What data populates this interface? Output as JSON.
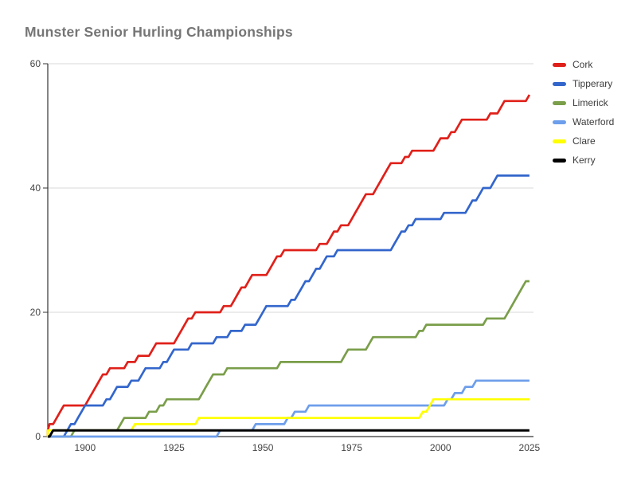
{
  "chart_data": {
    "type": "line",
    "title": "Munster Senior Hurling Championships",
    "value_type": "cumulative_championship_titles_by_year",
    "x_axis": {
      "ticks": [
        1900,
        1925,
        1950,
        1975,
        2000,
        2025
      ],
      "domain_start": 1889.5,
      "domain_end": 2030,
      "first_year": 1887,
      "last_year": 2025
    },
    "y_axis": {
      "ticks": [
        0,
        20,
        40,
        60
      ],
      "lim": [
        0,
        60
      ]
    },
    "grid": true,
    "legend_position": "right",
    "series": [
      {
        "name": "Cork",
        "color": "#e0201a",
        "total": 55,
        "win_years": [
          1888,
          1890,
          1892,
          1893,
          1894,
          1901,
          1902,
          1903,
          1904,
          1905,
          1907,
          1912,
          1915,
          1919,
          1920,
          1926,
          1927,
          1928,
          1929,
          1931,
          1939,
          1942,
          1943,
          1944,
          1946,
          1947,
          1952,
          1953,
          1954,
          1956,
          1966,
          1969,
          1970,
          1972,
          1975,
          1976,
          1977,
          1978,
          1979,
          1982,
          1983,
          1984,
          1985,
          1986,
          1990,
          1992,
          1999,
          2000,
          2003,
          2005,
          2006,
          2014,
          2017,
          2018,
          2025
        ]
      },
      {
        "name": "Tipperary",
        "color": "#3366cc",
        "total": 42,
        "win_years": [
          1895,
          1896,
          1898,
          1899,
          1900,
          1906,
          1908,
          1909,
          1913,
          1916,
          1917,
          1922,
          1924,
          1925,
          1930,
          1937,
          1941,
          1945,
          1949,
          1950,
          1951,
          1958,
          1960,
          1961,
          1962,
          1964,
          1965,
          1967,
          1968,
          1971,
          1987,
          1988,
          1989,
          1991,
          1993,
          2001,
          2008,
          2009,
          2011,
          2012,
          2015,
          2016
        ]
      },
      {
        "name": "Limerick",
        "color": "#7a9e4a",
        "total": 25,
        "win_years": [
          1897,
          1910,
          1911,
          1918,
          1921,
          1923,
          1933,
          1934,
          1935,
          1936,
          1940,
          1955,
          1973,
          1974,
          1980,
          1981,
          1994,
          1996,
          2013,
          2019,
          2020,
          2021,
          2022,
          2023,
          2024
        ]
      },
      {
        "name": "Waterford",
        "color": "#6d9eeb",
        "total": 9,
        "win_years": [
          1938,
          1948,
          1957,
          1959,
          1963,
          2002,
          2004,
          2007,
          2010
        ]
      },
      {
        "name": "Clare",
        "color": "#ffff00",
        "total": 6,
        "win_years": [
          1889,
          1914,
          1932,
          1995,
          1997,
          1998
        ]
      },
      {
        "name": "Kerry",
        "color": "#000000",
        "total": 1,
        "win_years": [
          1891
        ]
      }
    ]
  },
  "styles": {
    "background": "#ffffff",
    "title_color": "#757575",
    "axis_color": "#333333",
    "grid_color": "#d9d9d9",
    "tick_label_color": "#444444",
    "legend_text_color": "#3c3c3c"
  }
}
